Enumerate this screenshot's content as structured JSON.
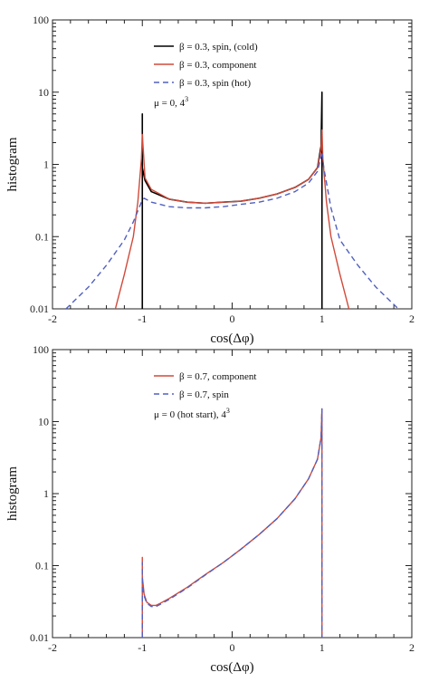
{
  "colors": {
    "cold": "#000000",
    "component": "#d04a3a",
    "hot": "#5060c0"
  },
  "chart_data": [
    {
      "type": "line",
      "title": "",
      "xlabel": "cos(Δφ)",
      "ylabel": "histogram",
      "xlim": [
        -2,
        2
      ],
      "ylim": [
        0.01,
        100
      ],
      "yscale": "log",
      "xticks": [
        "-2",
        "-1",
        "0",
        "1",
        "2"
      ],
      "yticks": [
        "0.01",
        "0.1",
        "1",
        "10",
        "100"
      ],
      "legend_position": "top-left inside",
      "annotation": "μ = 0, 4",
      "annotation_sup": "3",
      "series": [
        {
          "name": "β = 0.3, spin, (cold)",
          "color": "#000000",
          "dash": "solid",
          "width": 1.6,
          "x": [
            -1.0,
            -1.0,
            -1.0,
            -0.97,
            -0.9,
            -0.7,
            -0.5,
            -0.3,
            -0.1,
            0.1,
            0.3,
            0.5,
            0.7,
            0.85,
            0.95,
            0.99,
            1.0,
            1.0,
            1.0
          ],
          "y": [
            0.01,
            5.0,
            0.9,
            0.6,
            0.42,
            0.33,
            0.3,
            0.29,
            0.3,
            0.31,
            0.34,
            0.39,
            0.48,
            0.62,
            0.9,
            1.8,
            10.0,
            0.01,
            0.01
          ]
        },
        {
          "name": "β = 0.3, component",
          "color": "#d04a3a",
          "dash": "solid",
          "width": 1.4,
          "x": [
            -1.3,
            -1.2,
            -1.1,
            -1.05,
            -1.01,
            -1.0,
            -0.97,
            -0.9,
            -0.7,
            -0.5,
            -0.3,
            -0.1,
            0.1,
            0.3,
            0.5,
            0.7,
            0.85,
            0.95,
            0.99,
            1.0,
            1.01,
            1.05,
            1.1,
            1.2,
            1.3
          ],
          "y": [
            0.01,
            0.03,
            0.1,
            0.3,
            1.2,
            2.6,
            0.65,
            0.45,
            0.33,
            0.3,
            0.29,
            0.3,
            0.31,
            0.34,
            0.39,
            0.48,
            0.62,
            0.9,
            1.6,
            3.0,
            1.2,
            0.3,
            0.1,
            0.03,
            0.01
          ]
        },
        {
          "name": "β = 0.3, spin (hot)",
          "color": "#5060c0",
          "dash": "dashed",
          "width": 1.4,
          "x": [
            -1.85,
            -1.6,
            -1.4,
            -1.2,
            -1.1,
            -1.02,
            -1.0,
            -0.98,
            -0.9,
            -0.7,
            -0.5,
            -0.3,
            -0.1,
            0.1,
            0.3,
            0.5,
            0.7,
            0.85,
            0.95,
            0.99,
            1.0,
            1.02,
            1.1,
            1.2,
            1.4,
            1.6,
            1.85
          ],
          "y": [
            0.01,
            0.02,
            0.04,
            0.09,
            0.16,
            0.28,
            0.32,
            0.34,
            0.3,
            0.26,
            0.25,
            0.25,
            0.26,
            0.28,
            0.3,
            0.34,
            0.42,
            0.55,
            0.8,
            1.3,
            1.5,
            0.9,
            0.25,
            0.09,
            0.04,
            0.02,
            0.01
          ]
        }
      ]
    },
    {
      "type": "line",
      "title": "",
      "xlabel": "cos(Δφ)",
      "ylabel": "histogram",
      "xlim": [
        -2,
        2
      ],
      "ylim": [
        0.01,
        100
      ],
      "yscale": "log",
      "xticks": [
        "-2",
        "-1",
        "0",
        "1",
        "2"
      ],
      "yticks": [
        "0.01",
        "0.1",
        "1",
        "10",
        "100"
      ],
      "legend_position": "top-left inside",
      "annotation": "μ = 0 (hot start), 4",
      "annotation_sup": "3",
      "series": [
        {
          "name": "β = 0.7, component",
          "color": "#d04a3a",
          "dash": "solid",
          "width": 1.4,
          "x": [
            -1.0,
            -1.0,
            -1.0,
            -0.98,
            -0.95,
            -0.9,
            -0.85,
            -0.8,
            -0.7,
            -0.5,
            -0.3,
            -0.1,
            0.1,
            0.3,
            0.5,
            0.7,
            0.85,
            0.95,
            0.99,
            1.0,
            1.0,
            1.0
          ],
          "y": [
            0.01,
            0.13,
            0.07,
            0.04,
            0.031,
            0.028,
            0.028,
            0.03,
            0.035,
            0.05,
            0.075,
            0.11,
            0.17,
            0.27,
            0.45,
            0.85,
            1.6,
            3.0,
            6.0,
            15.0,
            0.01,
            0.01
          ]
        },
        {
          "name": "β = 0.7, spin",
          "color": "#5060c0",
          "dash": "dashed",
          "width": 1.4,
          "x": [
            -1.0,
            -1.0,
            -1.0,
            -0.98,
            -0.95,
            -0.9,
            -0.85,
            -0.8,
            -0.7,
            -0.5,
            -0.3,
            -0.1,
            0.1,
            0.3,
            0.5,
            0.7,
            0.85,
            0.95,
            0.99,
            1.0,
            1.0,
            1.0
          ],
          "y": [
            0.01,
            0.11,
            0.06,
            0.038,
            0.03,
            0.027,
            0.027,
            0.029,
            0.034,
            0.049,
            0.074,
            0.11,
            0.17,
            0.27,
            0.45,
            0.85,
            1.6,
            3.0,
            6.0,
            15.0,
            0.01,
            0.01
          ]
        }
      ]
    }
  ]
}
